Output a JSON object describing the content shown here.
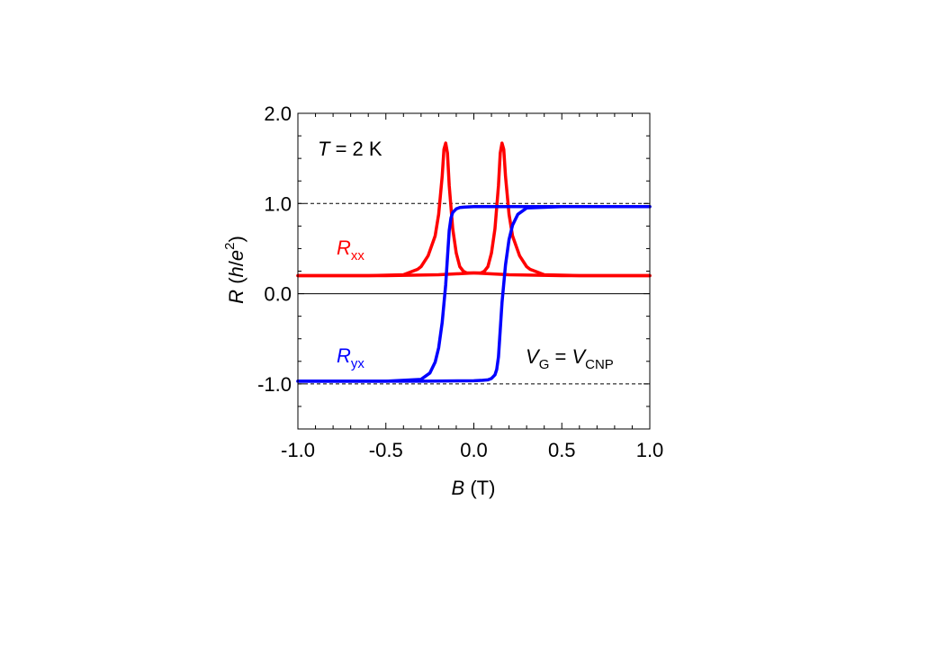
{
  "chart_data": {
    "type": "line",
    "xlabel": {
      "symbol": "B",
      "unit": "(T)"
    },
    "ylabel": {
      "symbol": "R",
      "unit_open": "(",
      "unit_h": "h",
      "unit_slash": "/",
      "unit_e": "e",
      "unit_exp": "2",
      "unit_close": ")"
    },
    "xlim": [
      -1.0,
      1.0
    ],
    "ylim": [
      -1.5,
      2.0
    ],
    "x_ticks": [
      -1.0,
      -0.5,
      0.0,
      0.5,
      1.0
    ],
    "x_tick_labels": [
      "-1.0",
      "-0.5",
      "0.0",
      "0.5",
      "1.0"
    ],
    "y_ticks": [
      -1.0,
      0.0,
      1.0,
      2.0
    ],
    "y_tick_labels": [
      "-1.0",
      "0.0",
      "1.0",
      "2.0"
    ],
    "reference_lines": [
      1.0,
      -1.0
    ],
    "annotations": {
      "temperature": {
        "symbol": "T",
        "text": " = 2 K"
      },
      "gate": {
        "v1": "V",
        "sub1": "G",
        "eq": " = ",
        "v2": "V",
        "sub2": "CNP"
      }
    },
    "series": [
      {
        "name": "R",
        "name_sub": "xx",
        "color": "#ff0000",
        "branches": [
          {
            "x": [
              -1.0,
              -0.6,
              -0.4,
              -0.32,
              -0.3,
              -0.26,
              -0.22,
              -0.2,
              -0.18,
              -0.17,
              -0.16,
              -0.15,
              -0.14,
              -0.12,
              -0.1,
              -0.08,
              -0.06,
              -0.04,
              -0.02,
              0.0,
              0.2,
              0.5,
              1.0
            ],
            "y": [
              0.2,
              0.2,
              0.21,
              0.27,
              0.3,
              0.42,
              0.64,
              0.88,
              1.3,
              1.6,
              1.67,
              1.56,
              1.2,
              0.72,
              0.45,
              0.3,
              0.25,
              0.23,
              0.23,
              0.23,
              0.21,
              0.2,
              0.2
            ]
          },
          {
            "x": [
              -1.0,
              -0.5,
              -0.2,
              0.0,
              0.02,
              0.04,
              0.06,
              0.08,
              0.1,
              0.12,
              0.14,
              0.15,
              0.16,
              0.17,
              0.18,
              0.2,
              0.22,
              0.26,
              0.3,
              0.32,
              0.4,
              0.6,
              1.0
            ],
            "y": [
              0.2,
              0.2,
              0.21,
              0.23,
              0.23,
              0.23,
              0.25,
              0.3,
              0.45,
              0.72,
              1.2,
              1.56,
              1.67,
              1.6,
              1.3,
              0.88,
              0.64,
              0.42,
              0.3,
              0.27,
              0.21,
              0.2,
              0.2
            ]
          }
        ]
      },
      {
        "name": "R",
        "name_sub": "yx",
        "color": "#0000ff",
        "branches": [
          {
            "x": [
              -1.0,
              -0.5,
              -0.3,
              -0.25,
              -0.22,
              -0.2,
              -0.18,
              -0.16,
              -0.15,
              -0.14,
              -0.13,
              -0.12,
              -0.1,
              -0.08,
              -0.05,
              0.0,
              0.3,
              1.0
            ],
            "y": [
              -0.97,
              -0.97,
              -0.95,
              -0.88,
              -0.76,
              -0.6,
              -0.32,
              0.1,
              0.4,
              0.7,
              0.84,
              0.9,
              0.94,
              0.955,
              0.96,
              0.965,
              0.965,
              0.965
            ]
          },
          {
            "x": [
              -1.0,
              -0.3,
              0.0,
              0.05,
              0.08,
              0.1,
              0.12,
              0.13,
              0.14,
              0.15,
              0.16,
              0.18,
              0.2,
              0.22,
              0.25,
              0.3,
              0.5,
              1.0
            ],
            "y": [
              -0.97,
              -0.97,
              -0.965,
              -0.96,
              -0.955,
              -0.94,
              -0.9,
              -0.84,
              -0.7,
              -0.4,
              -0.1,
              0.32,
              0.6,
              0.76,
              0.88,
              0.95,
              0.965,
              0.965
            ]
          }
        ]
      }
    ]
  }
}
